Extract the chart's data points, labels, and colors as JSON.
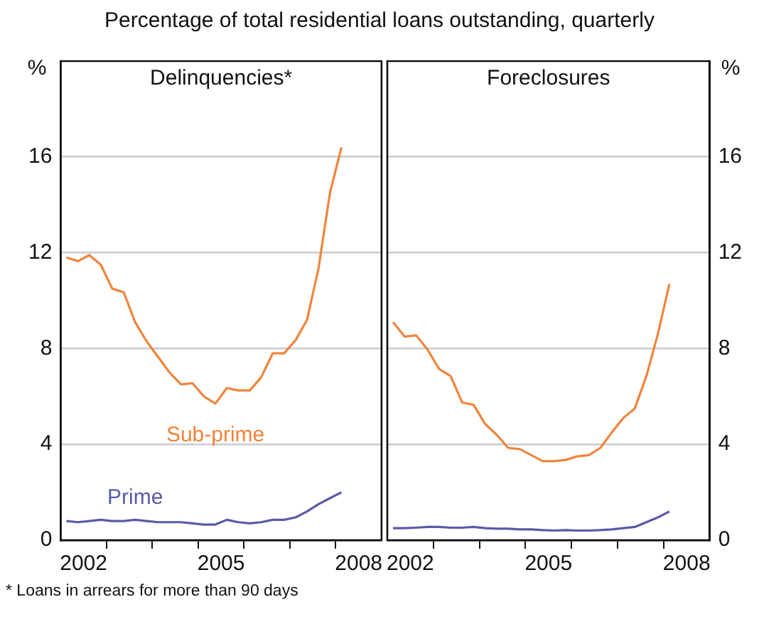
{
  "chart_data": [
    {
      "type": "line",
      "title": "Delinquencies*",
      "ylabel": "%",
      "annotations": [
        "Percentage of total residential loans outstanding, quarterly",
        "*    Loans in arrears for more than 90 days"
      ],
      "x": [
        2002.125,
        2002.375,
        2002.625,
        2002.875,
        2003.125,
        2003.375,
        2003.625,
        2003.875,
        2004.125,
        2004.375,
        2004.625,
        2004.875,
        2005.125,
        2005.375,
        2005.625,
        2005.875,
        2006.125,
        2006.375,
        2006.625,
        2006.875,
        2007.125,
        2007.375,
        2007.625,
        2007.875,
        2008.125
      ],
      "series": [
        {
          "name": "Sub-prime",
          "color": "#f0843c",
          "values": [
            11.8,
            11.65,
            11.9,
            11.5,
            10.5,
            10.35,
            9.1,
            8.3,
            7.65,
            7.0,
            6.5,
            6.55,
            6.0,
            5.7,
            6.35,
            6.25,
            6.25,
            6.8,
            7.8,
            7.8,
            8.35,
            9.2,
            11.35,
            14.5,
            16.4
          ]
        },
        {
          "name": "Prime",
          "color": "#5a5aa8",
          "values": [
            0.8,
            0.75,
            0.8,
            0.85,
            0.8,
            0.8,
            0.85,
            0.8,
            0.75,
            0.75,
            0.75,
            0.7,
            0.65,
            0.65,
            0.85,
            0.75,
            0.7,
            0.75,
            0.85,
            0.85,
            0.95,
            1.2,
            1.5,
            1.75,
            2.0
          ]
        }
      ],
      "xlim": [
        2002,
        2009
      ],
      "xticks": [
        {
          "value": 2002.5,
          "label": "2002"
        },
        {
          "value": 2003,
          "label": null
        },
        {
          "value": 2004,
          "label": null
        },
        {
          "value": 2005,
          "label": null
        },
        {
          "value": 2005.5,
          "label": "2005"
        },
        {
          "value": 2006,
          "label": null
        },
        {
          "value": 2007,
          "label": null
        },
        {
          "value": 2008,
          "label": null
        },
        {
          "value": 2008.5,
          "label": "2008"
        }
      ],
      "ylim": [
        0,
        20
      ],
      "yticks": [
        0,
        4,
        8,
        12,
        16
      ],
      "grid": "y",
      "legend": false,
      "marker": "none",
      "line_style": "solid"
    },
    {
      "type": "line",
      "title": "Foreclosures",
      "y2label": "%",
      "x": [
        2002.125,
        2002.375,
        2002.625,
        2002.875,
        2003.125,
        2003.375,
        2003.625,
        2003.875,
        2004.125,
        2004.375,
        2004.625,
        2004.875,
        2005.125,
        2005.375,
        2005.625,
        2005.875,
        2006.125,
        2006.375,
        2006.625,
        2006.875,
        2007.125,
        2007.375,
        2007.625,
        2007.875,
        2008.125
      ],
      "series": [
        {
          "color": "#f0843c",
          "axis": "y2",
          "values": [
            9.1,
            8.5,
            8.55,
            7.95,
            7.15,
            6.85,
            5.75,
            5.65,
            4.85,
            4.4,
            3.85,
            3.8,
            3.55,
            3.3,
            3.3,
            3.35,
            3.5,
            3.55,
            3.85,
            4.5,
            5.1,
            5.5,
            6.85,
            8.6,
            10.7
          ]
        },
        {
          "color": "#5a5aa8",
          "axis": "y2",
          "values": [
            0.5,
            0.5,
            0.52,
            0.55,
            0.55,
            0.52,
            0.52,
            0.55,
            0.5,
            0.48,
            0.48,
            0.45,
            0.45,
            0.42,
            0.4,
            0.42,
            0.4,
            0.4,
            0.42,
            0.45,
            0.5,
            0.55,
            0.75,
            0.95,
            1.2
          ]
        }
      ],
      "xlim": [
        2002,
        2009
      ],
      "xticks": [
        {
          "value": 2002.5,
          "label": "2002"
        },
        {
          "value": 2003,
          "label": null
        },
        {
          "value": 2004,
          "label": null
        },
        {
          "value": 2005,
          "label": null
        },
        {
          "value": 2005.5,
          "label": "2005"
        },
        {
          "value": 2006,
          "label": null
        },
        {
          "value": 2007,
          "label": null
        },
        {
          "value": 2008,
          "label": null
        },
        {
          "value": 2008.5,
          "label": "2008"
        }
      ],
      "y2lim": [
        0,
        20
      ],
      "y2ticks": [
        0,
        4,
        8,
        12,
        16
      ],
      "grid": "y",
      "legend": false,
      "marker": "none",
      "line_style": "solid"
    }
  ]
}
